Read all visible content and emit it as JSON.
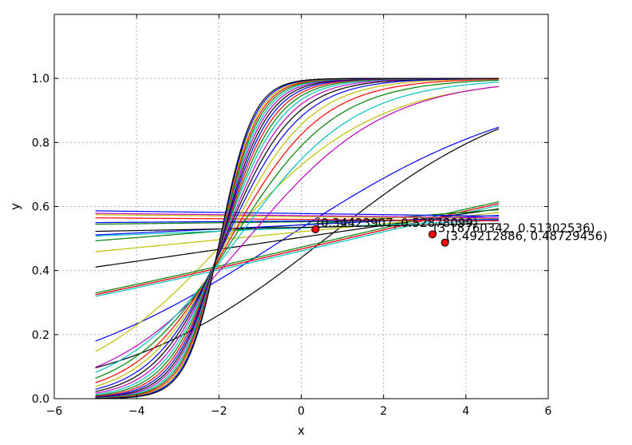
{
  "chart_data": {
    "type": "line",
    "title": "",
    "xlabel": "x",
    "ylabel": "y",
    "xlim": [
      -6,
      6
    ],
    "ylim": [
      0,
      1.2
    ],
    "xticks": [
      -6,
      -4,
      -2,
      0,
      2,
      4,
      6
    ],
    "yticks": [
      0.0,
      0.2,
      0.4,
      0.6,
      0.8,
      1.0
    ],
    "xtick_labels": [
      "−6",
      "−4",
      "−2",
      "0",
      "2",
      "4",
      "6"
    ],
    "ytick_labels": [
      "0.0",
      "0.2",
      "0.4",
      "0.6",
      "0.8",
      "1.0"
    ],
    "grid": true,
    "legend": "none",
    "x_range": [
      -5,
      4.8
    ],
    "series_logistic": [
      {
        "color": "#000000",
        "slope": 0.4,
        "center": 0.6
      },
      {
        "color": "#0000ff",
        "slope": 0.33,
        "center": -0.4
      },
      {
        "color": "#bfbf00",
        "slope": 0.55,
        "center": -1.8
      },
      {
        "color": "#00bfbf",
        "slope": 0.12,
        "center": 1.3
      },
      {
        "color": "#bf00bf",
        "slope": 0.12,
        "center": 1.1
      },
      {
        "color": "#ff0000",
        "slope": 0.12,
        "center": 1.1
      },
      {
        "color": "#008000",
        "slope": 0.12,
        "center": 0.9
      },
      {
        "color": "#000000",
        "slope": 0.075,
        "center": -0.2
      },
      {
        "color": "#bfbf00",
        "slope": 0.05,
        "center": -1.7
      },
      {
        "color": "#008000",
        "slope": 0.04,
        "center": -4.3
      },
      {
        "color": "#0000ff",
        "slope": 0.025,
        "center": -6.8
      },
      {
        "color": "#00bfbf",
        "slope": 0.02,
        "center": -6.6
      },
      {
        "color": "#000000",
        "slope": 0.01,
        "center": -14.0
      },
      {
        "color": "#008000",
        "slope": 0.006,
        "center": -35.0
      },
      {
        "color": "#0000ff",
        "slope": 0.004,
        "center": -55.0
      },
      {
        "color": "#ff0000",
        "slope": -0.004,
        "center": 60.0
      },
      {
        "color": "#bfbf00",
        "slope": -0.005,
        "center": 55.0
      },
      {
        "color": "#bf00bf",
        "slope": -0.006,
        "center": 48.0
      },
      {
        "color": "#0000ff",
        "slope": -0.007,
        "center": 45.0
      },
      {
        "color": "#bf00bf",
        "slope": 0.6,
        "center": -1.3
      },
      {
        "color": "#00bfbf",
        "slope": 0.7,
        "center": -1.55
      },
      {
        "color": "#008000",
        "slope": 0.8,
        "center": -1.65
      },
      {
        "color": "#ff0000",
        "slope": 0.9,
        "center": -1.72
      },
      {
        "color": "#bfbf00",
        "slope": 1.0,
        "center": -1.78
      },
      {
        "color": "#0000ff",
        "slope": 1.1,
        "center": -1.82
      },
      {
        "color": "#000000",
        "slope": 1.2,
        "center": -1.85
      },
      {
        "color": "#bf00bf",
        "slope": 1.3,
        "center": -1.87
      },
      {
        "color": "#00bfbf",
        "slope": 1.4,
        "center": -1.89
      },
      {
        "color": "#008000",
        "slope": 1.5,
        "center": -1.9
      },
      {
        "color": "#ff0000",
        "slope": 1.6,
        "center": -1.91
      },
      {
        "color": "#0000ff",
        "slope": 1.7,
        "center": -1.92
      },
      {
        "color": "#000000",
        "slope": 1.8,
        "center": -1.93
      },
      {
        "color": "#bf00bf",
        "slope": 1.9,
        "center": -1.94
      },
      {
        "color": "#00bfbf",
        "slope": 2.0,
        "center": -1.945
      },
      {
        "color": "#008000",
        "slope": 2.1,
        "center": -1.95
      },
      {
        "color": "#ff0000",
        "slope": 2.2,
        "center": -1.955
      },
      {
        "color": "#bfbf00",
        "slope": 2.3,
        "center": -1.96
      },
      {
        "color": "#0000ff",
        "slope": 2.4,
        "center": -1.965
      },
      {
        "color": "#000000",
        "slope": 2.5,
        "center": -1.97
      }
    ],
    "points": [
      {
        "x": 0.34423907,
        "y": 0.52878099,
        "label": "(0.34423907, 0.52878099)"
      },
      {
        "x": 3.18760342,
        "y": 0.51302536,
        "label": "(3.18760342, 0.51302536)"
      },
      {
        "x": 3.49212886,
        "y": 0.48729456,
        "label": "(3.49212886, 0.48729456)"
      }
    ],
    "point_color": "#ff0000"
  }
}
